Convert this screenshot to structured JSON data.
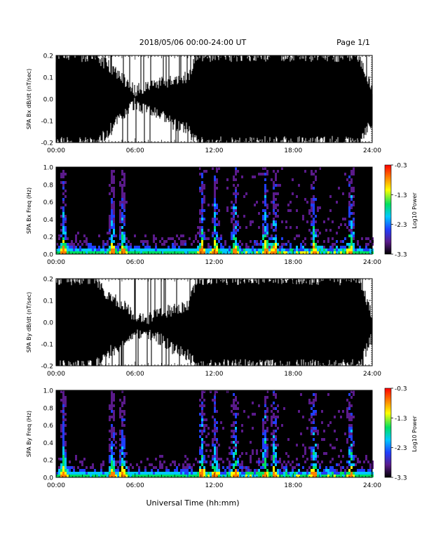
{
  "header": {
    "title": "2018/05/06  00:00-24:00 UT",
    "page": "Page 1/1"
  },
  "xlabel": "Universal Time (hh:mm)",
  "chart_data": [
    {
      "type": "line",
      "ylabel": "SPA Bx dB/dt (nT/sec)",
      "xlim": [
        "00:00",
        "24:00"
      ],
      "xticks": [
        "00:00",
        "06:00",
        "12:00",
        "18:00",
        "24:00"
      ],
      "ylim": [
        -0.2,
        0.2
      ],
      "yticks": [
        "-0.2",
        "-0.1",
        "0.0",
        "0.1",
        "0.2"
      ],
      "x_hours": [
        0,
        1,
        2,
        3,
        4,
        5,
        6,
        7,
        8,
        9,
        10,
        10.7,
        11,
        12,
        13,
        14,
        15,
        16,
        17,
        18,
        19,
        20,
        21,
        22,
        23,
        24
      ],
      "upper_envelope": [
        0.2,
        0.2,
        0.2,
        0.2,
        0.15,
        0.1,
        0.04,
        0.06,
        0.08,
        0.08,
        0.1,
        0.2,
        0.2,
        0.2,
        0.2,
        0.2,
        0.2,
        0.2,
        0.2,
        0.2,
        0.2,
        0.2,
        0.2,
        0.2,
        0.2,
        0.04
      ],
      "lower_envelope": [
        -0.2,
        -0.2,
        -0.2,
        -0.2,
        -0.15,
        -0.08,
        -0.02,
        -0.05,
        -0.08,
        -0.12,
        -0.14,
        -0.2,
        -0.2,
        -0.2,
        -0.2,
        -0.2,
        -0.2,
        -0.2,
        -0.2,
        -0.2,
        -0.2,
        -0.2,
        -0.2,
        -0.2,
        -0.2,
        -0.1
      ]
    },
    {
      "type": "heatmap",
      "ylabel": "SPA Bx Freq (Hz)",
      "xlim": [
        "00:00",
        "24:00"
      ],
      "xticks": [
        "00:00",
        "06:00",
        "12:00",
        "18:00",
        "24:00"
      ],
      "ylim": [
        0,
        1.0
      ],
      "yticks": [
        "0.0",
        "0.2",
        "0.4",
        "0.6",
        "0.8",
        "1.0"
      ],
      "colorbar": {
        "label": "Log10 Power",
        "range": [
          -3.3,
          -0.3
        ],
        "ticks": [
          "-0.3",
          "-1.3",
          "-2.3",
          "-3.3"
        ]
      },
      "active_hours": [
        0.5,
        4.2,
        5.0,
        11.0,
        12.0,
        13.5,
        15.8,
        16.5,
        19.5,
        22.3
      ],
      "colors": {
        "scale": [
          "#000000",
          "#5a1a8a",
          "#1f3fff",
          "#00c8ff",
          "#00e060",
          "#ffff00",
          "#ff8000",
          "#ff0000"
        ]
      }
    },
    {
      "type": "line",
      "ylabel": "SPA By dB/dt (nT/sec)",
      "xlim": [
        "00:00",
        "24:00"
      ],
      "xticks": [
        "00:00",
        "06:00",
        "12:00",
        "18:00",
        "24:00"
      ],
      "ylim": [
        -0.2,
        0.2
      ],
      "yticks": [
        "-0.2",
        "-0.1",
        "0.0",
        "0.1",
        "0.2"
      ],
      "x_hours": [
        0,
        1,
        2,
        3,
        4,
        5,
        6,
        7,
        8,
        9,
        10,
        10.7,
        11,
        12,
        13,
        14,
        15,
        16,
        17,
        18,
        19,
        20,
        21,
        22,
        23,
        24
      ],
      "upper_envelope": [
        0.2,
        0.2,
        0.2,
        0.2,
        0.12,
        0.08,
        0.03,
        0.02,
        0.04,
        0.06,
        0.08,
        0.2,
        0.2,
        0.2,
        0.2,
        0.2,
        0.2,
        0.2,
        0.2,
        0.2,
        0.2,
        0.2,
        0.2,
        0.2,
        0.2,
        0.03
      ],
      "lower_envelope": [
        -0.2,
        -0.2,
        -0.2,
        -0.2,
        -0.14,
        -0.1,
        -0.06,
        -0.05,
        -0.08,
        -0.13,
        -0.15,
        -0.2,
        -0.2,
        -0.2,
        -0.2,
        -0.2,
        -0.2,
        -0.2,
        -0.2,
        -0.2,
        -0.2,
        -0.2,
        -0.2,
        -0.2,
        -0.2,
        -0.07
      ]
    },
    {
      "type": "heatmap",
      "ylabel": "SPA By Freq (Hz)",
      "xlim": [
        "00:00",
        "24:00"
      ],
      "xticks": [
        "00:00",
        "06:00",
        "12:00",
        "18:00",
        "24:00"
      ],
      "ylim": [
        0,
        1.0
      ],
      "yticks": [
        "0.0",
        "0.2",
        "0.4",
        "0.6",
        "0.8",
        "1.0"
      ],
      "colorbar": {
        "label": "Log10 Power",
        "range": [
          -3.3,
          -0.3
        ],
        "ticks": [
          "-0.3",
          "-1.3",
          "-2.3",
          "-3.3"
        ]
      },
      "active_hours": [
        0.5,
        4.2,
        5.0,
        11.0,
        12.0,
        13.5,
        15.8,
        16.5,
        19.5,
        22.3
      ],
      "colors": {
        "scale": [
          "#000000",
          "#5a1a8a",
          "#1f3fff",
          "#00c8ff",
          "#00e060",
          "#ffff00",
          "#ff8000",
          "#ff0000"
        ]
      }
    }
  ]
}
